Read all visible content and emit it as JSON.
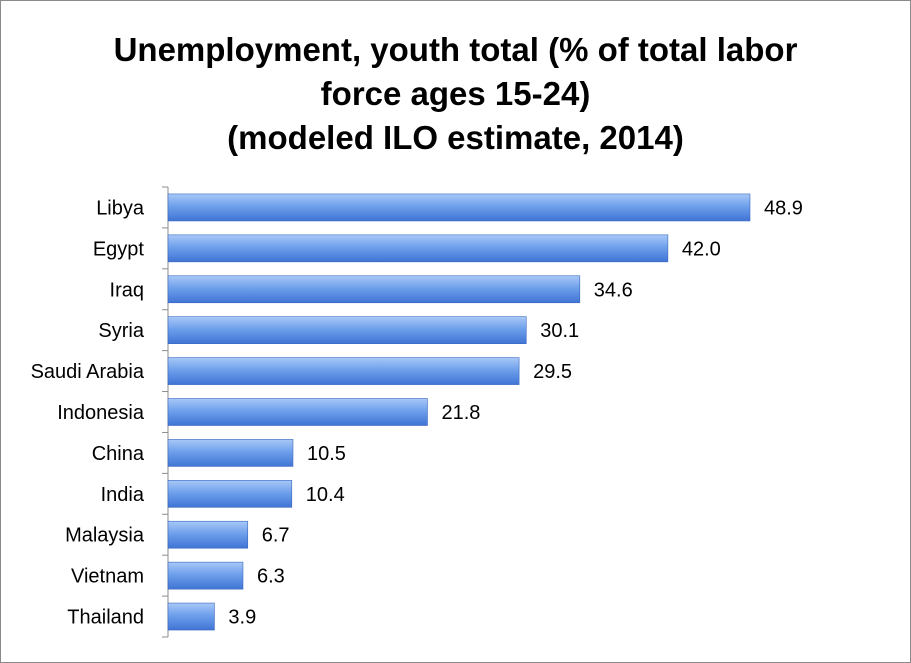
{
  "chart_data": {
    "type": "bar",
    "orientation": "horizontal",
    "title_lines": [
      "Unemployment, youth total (% of total labor",
      "force ages 15-24)",
      "(modeled ILO estimate, 2014)"
    ],
    "categories": [
      "Libya",
      "Egypt",
      "Iraq",
      "Syria",
      "Saudi Arabia",
      "Indonesia",
      "China",
      "India",
      "Malaysia",
      "Vietnam",
      "Thailand"
    ],
    "values": [
      48.9,
      42.0,
      34.6,
      30.1,
      29.5,
      21.8,
      10.5,
      10.4,
      6.7,
      6.3,
      3.9
    ],
    "value_labels": [
      "48.9",
      "42.0",
      "34.6",
      "30.1",
      "29.5",
      "21.8",
      "10.5",
      "10.4",
      "6.7",
      "6.3",
      "3.9"
    ],
    "xlim": [
      0,
      48.9
    ],
    "grid": false,
    "legend": "none",
    "bar_color": "#5b8fe0"
  }
}
